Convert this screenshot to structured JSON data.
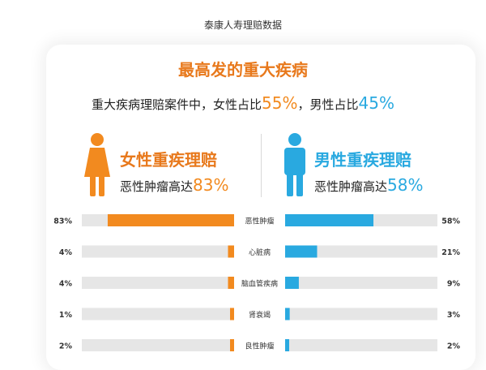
{
  "source_caption": "泰康人寿理赔数据",
  "headline": "最高发的重大疾病",
  "summary": {
    "lead": "重大疾病理赔案件中，女性占比",
    "female_share": "55%",
    "mid": "，男性占比",
    "male_share": "45%"
  },
  "female": {
    "title": "女性重疾理赔",
    "sub_lead": "恶性肿瘤高达",
    "sub_value": "83%",
    "icon": "female-person-icon"
  },
  "male": {
    "title": "男性重疾理赔",
    "sub_lead": "恶性肿瘤高达",
    "sub_value": "58%",
    "icon": "male-person-icon"
  },
  "colors": {
    "female": "#f28a1f",
    "male": "#29a9e0",
    "track": "#e6e6e6",
    "headline": "#e8791c"
  },
  "chart_data": {
    "type": "bar",
    "layout": "diverging-paired",
    "categories": [
      "恶性肿瘤",
      "心脏病",
      "脑血管疾病",
      "肾衰竭",
      "良性肿瘤"
    ],
    "series": [
      {
        "name": "女性重疾理赔",
        "values": [
          83,
          4,
          4,
          1,
          2
        ],
        "labels": [
          "83%",
          "4%",
          "4%",
          "1%",
          "2%"
        ],
        "color": "#f28a1f"
      },
      {
        "name": "男性重疾理赔",
        "values": [
          58,
          21,
          9,
          3,
          2
        ],
        "labels": [
          "58%",
          "21%",
          "9%",
          "3%",
          "2%"
        ],
        "color": "#29a9e0"
      }
    ],
    "ylim": [
      0,
      100
    ],
    "grid": false
  }
}
